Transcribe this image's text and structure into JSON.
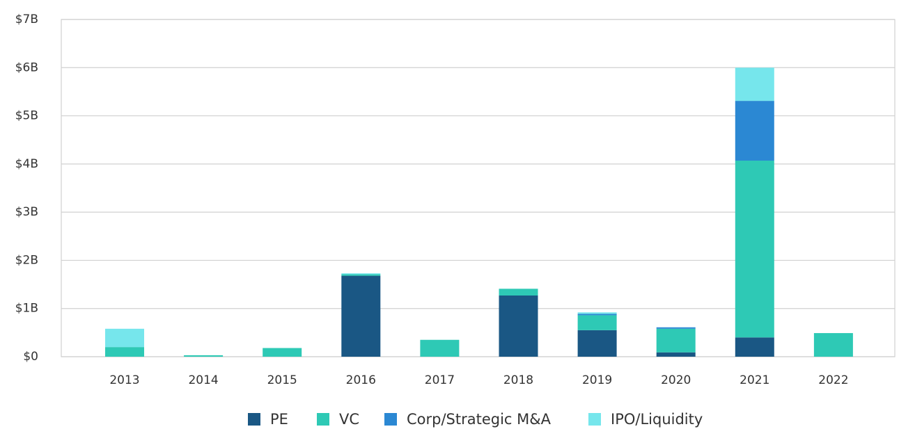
{
  "chart_data": {
    "type": "stacked_bar",
    "categories": [
      "2013",
      "2014",
      "2015",
      "2016",
      "2017",
      "2018",
      "2019",
      "2020",
      "2021",
      "2022"
    ],
    "series": [
      {
        "name": "PE",
        "color": "#1a5784",
        "values": [
          0,
          0,
          0,
          1.68,
          0,
          1.27,
          0.55,
          0.09,
          0.4,
          0
        ]
      },
      {
        "name": "VC",
        "color": "#2ec9b5",
        "values": [
          0.2,
          0.03,
          0.18,
          0.03,
          0.35,
          0.14,
          0.31,
          0.49,
          3.67,
          0.49
        ]
      },
      {
        "name": "Corp/Strategic M&A",
        "color": "#2b88d3",
        "values": [
          0,
          0,
          0,
          0,
          0,
          0,
          0.03,
          0.03,
          1.24,
          0
        ]
      },
      {
        "name": "IPO/Liquidity",
        "color": "#76e6ec",
        "values": [
          0.38,
          0,
          0,
          0.02,
          0,
          0,
          0.03,
          0,
          0.69,
          0
        ]
      }
    ],
    "ylim": [
      0,
      7
    ],
    "yticks": [
      {
        "value": 0,
        "label": "$0"
      },
      {
        "value": 1,
        "label": "$1B"
      },
      {
        "value": 2,
        "label": "$2B"
      },
      {
        "value": 3,
        "label": "$3B"
      },
      {
        "value": 4,
        "label": "$4B"
      },
      {
        "value": 5,
        "label": "$5B"
      },
      {
        "value": 6,
        "label": "$6B"
      },
      {
        "value": 7,
        "label": "$7B"
      }
    ],
    "grid": true
  }
}
